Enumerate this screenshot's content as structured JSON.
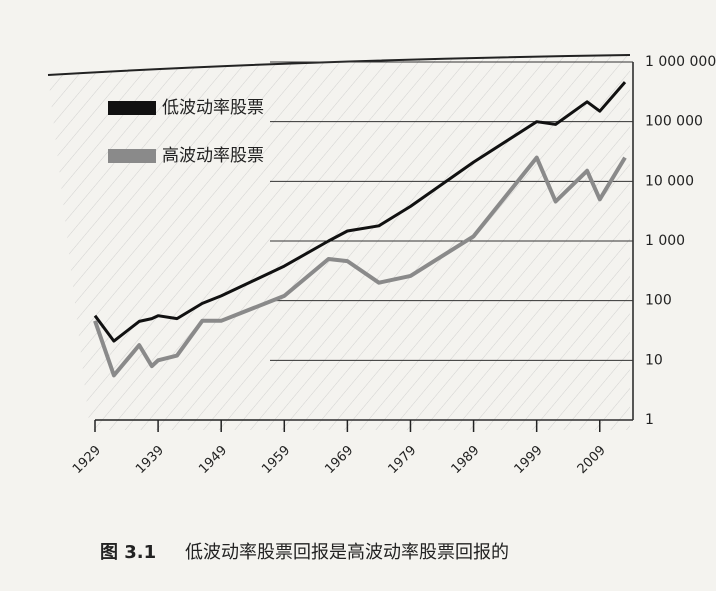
{
  "chart_data": {
    "type": "line",
    "caption_label": "图 3.1",
    "caption": "低波动率股票回报是高波动率股票回报的",
    "x": [
      1929,
      1932,
      1936,
      1938,
      1939,
      1942,
      1946,
      1949,
      1959,
      1966,
      1969,
      1974,
      1979,
      1989,
      1999,
      2002,
      2007,
      2009,
      2013
    ],
    "series": [
      {
        "name": "低波动率股票",
        "color": "#111111",
        "values": [
          56,
          21,
          45,
          50,
          56,
          50,
          90,
          120,
          380,
          1000,
          1470,
          1800,
          3800,
          21000,
          100000,
          90000,
          215000,
          150000,
          460000
        ]
      },
      {
        "name": "高波动率股票",
        "color": "#8a8a8a",
        "values": [
          46,
          5.6,
          18,
          8,
          10,
          12,
          46,
          46,
          120,
          500,
          460,
          200,
          260,
          1200,
          25000,
          4600,
          15000,
          5000,
          25000
        ]
      }
    ],
    "xlim": [
      1929,
      2013
    ],
    "xticks": [
      1929,
      1939,
      1949,
      1959,
      1969,
      1979,
      1989,
      1999,
      2009
    ],
    "ylim": [
      1,
      1000000
    ],
    "ylog": true,
    "yticks": [
      1,
      10,
      100,
      {
        "value": 1000,
        "label": "1 000"
      },
      {
        "value": 10000,
        "label": "10 000"
      },
      {
        "value": 100000,
        "label": "100 000"
      },
      {
        "value": 1000000,
        "label": "1 000 000"
      }
    ],
    "grid": true,
    "legend": "top-left"
  }
}
